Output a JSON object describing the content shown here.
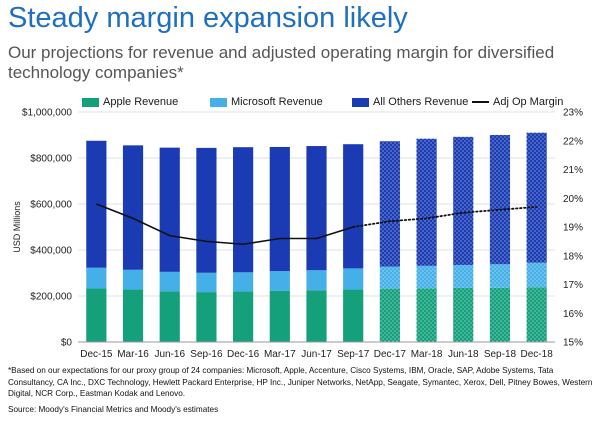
{
  "header": {
    "title": "Steady margin expansion likely",
    "subtitle": "Our projections for revenue and adjusted operating margin for diversified technology companies*"
  },
  "colors": {
    "apple": "#13a07a",
    "microsoft": "#45b0e8",
    "others": "#1a3bb3",
    "line": "#111111"
  },
  "chart_data": {
    "type": "bar",
    "stacked": true,
    "categories": [
      "Dec-15",
      "Mar-16",
      "Jun-16",
      "Sep-16",
      "Dec-16",
      "Mar-17",
      "Jun-17",
      "Sep-17",
      "Dec-17",
      "Mar-18",
      "Jun-18",
      "Sep-18",
      "Dec-18"
    ],
    "projected_from_index": 8,
    "series": [
      {
        "name": "Apple Revenue",
        "values": [
          233000,
          228000,
          220000,
          217000,
          220000,
          222000,
          225000,
          228000,
          232000,
          233000,
          235000,
          236000,
          238000
        ]
      },
      {
        "name": "Microsoft Revenue",
        "values": [
          90000,
          86000,
          85000,
          84000,
          83000,
          86000,
          87000,
          92000,
          96000,
          98000,
          100000,
          102000,
          107000
        ]
      },
      {
        "name": "All Others Revenue",
        "values": [
          552000,
          541000,
          540000,
          543000,
          544000,
          540000,
          540000,
          540000,
          545000,
          553000,
          557000,
          562000,
          565000
        ]
      }
    ],
    "line_series": {
      "name": "Adj Op Margin",
      "axis": "right",
      "values": [
        19.8,
        19.3,
        18.7,
        18.5,
        18.4,
        18.6,
        18.6,
        19.0,
        19.2,
        19.3,
        19.5,
        19.6,
        19.7
      ],
      "dotted_from_index": 7
    },
    "ylabel": "USD Millions",
    "ylim": [
      0,
      1000000
    ],
    "yticks": [
      0,
      200000,
      400000,
      600000,
      800000,
      1000000
    ],
    "ytick_labels": [
      "$0",
      "$200,000",
      "$400,000",
      "$600,000",
      "$800,000",
      "$1,000,000"
    ],
    "y2lim": [
      15,
      23
    ],
    "y2ticks": [
      15,
      16,
      17,
      18,
      19,
      20,
      21,
      22,
      23
    ],
    "y2tick_labels": [
      "15%",
      "16%",
      "17%",
      "18%",
      "19%",
      "20%",
      "21%",
      "22%",
      "23%"
    ],
    "legend_position": "top"
  },
  "footnote": "*Based on our expectations for our proxy group of 24 companies: Microsoft, Apple, Accenture, Cisco Systems, IBM, Oracle, SAP, Adobe Systems, Tata Consultancy, CA Inc., DXC Technology, Hewlett Packard Enterprise, HP Inc., Juniper Networks, NetApp, Seagate, Symantec, Xerox, Dell, Pitney Bowes, Western Digital, NCR Corp., Eastman Kodak and Lenovo.",
  "source": "Source: Moody's Financial Metrics and Moody's estimates"
}
